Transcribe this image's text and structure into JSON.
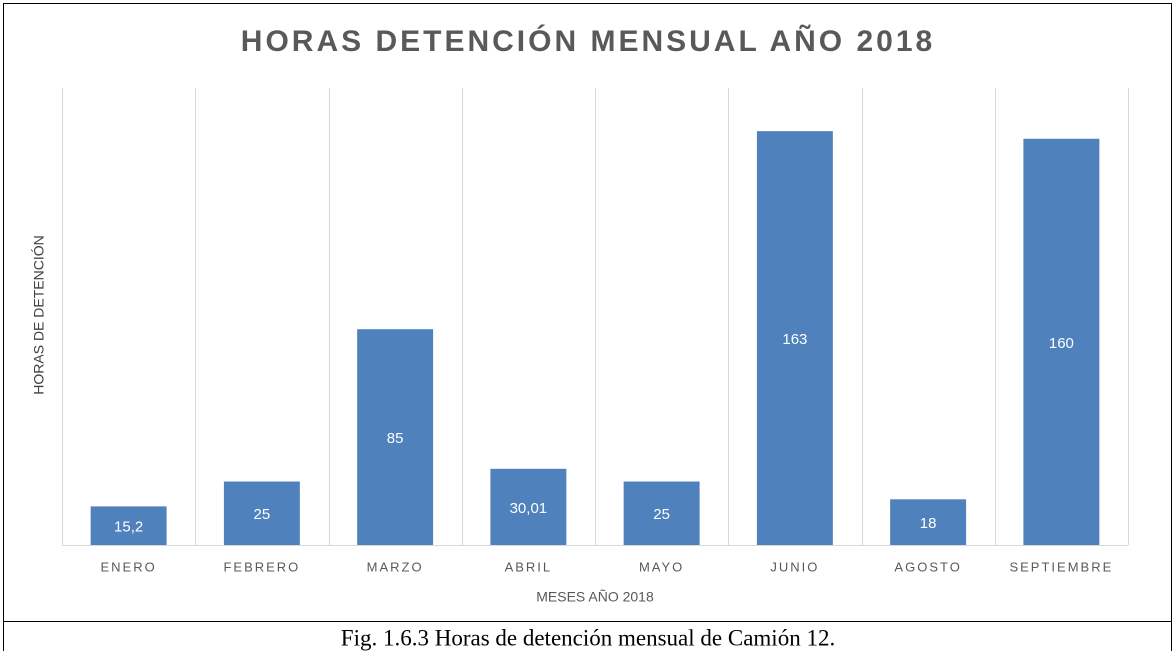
{
  "chart_data": {
    "type": "bar",
    "title": "HORAS DETENCIÓN MENSUAL AÑO 2018",
    "y_label": "HORAS DE DETENCIÓN",
    "x_label": "MESES AÑO 2018",
    "categories": [
      "ENERO",
      "FEBRERO",
      "MARZO",
      "ABRIL",
      "MAYO",
      "JUNIO",
      "AGOSTO",
      "SEPTIEMBRE"
    ],
    "values": [
      15.2,
      25,
      85,
      30.01,
      25,
      163,
      18,
      160
    ],
    "value_labels": [
      "15,2",
      "25",
      "85",
      "30,01",
      "25",
      "163",
      "18",
      "160"
    ],
    "color": "#4f81bd",
    "ylim": [
      0,
      180
    ]
  },
  "caption": "Fig. 1.6.3 Horas de detención mensual de Camión 12."
}
